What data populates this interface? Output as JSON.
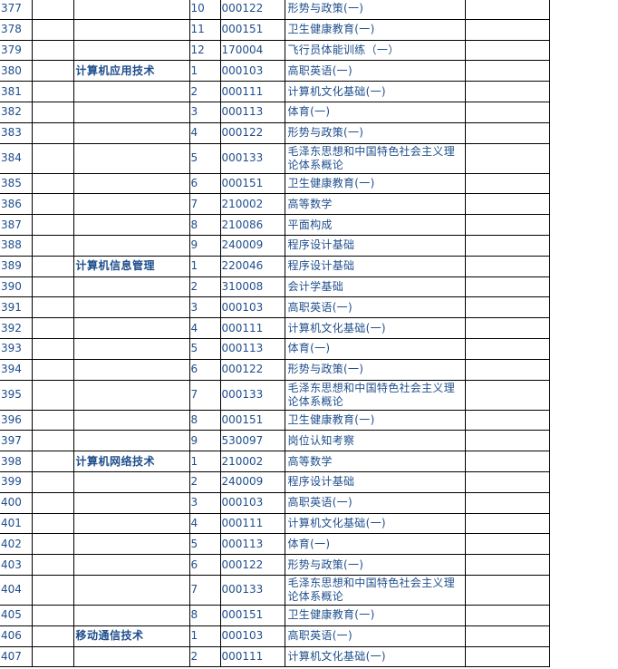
{
  "text_color": "#1f4e8c",
  "rows": [
    {
      "no": "377",
      "major": "",
      "seq": "10",
      "code": "000122",
      "course": "形势与政策(一)"
    },
    {
      "no": "378",
      "major": "",
      "seq": "11",
      "code": "000151",
      "course": "卫生健康教育(一)"
    },
    {
      "no": "379",
      "major": "",
      "seq": "12",
      "code": "170004",
      "course": "飞行员体能训练（一）"
    },
    {
      "no": "380",
      "major": "计算机应用技术",
      "seq": "1",
      "code": "000103",
      "course": "高职英语(一)"
    },
    {
      "no": "381",
      "major": "",
      "seq": "2",
      "code": "000111",
      "course": "计算机文化基础(一)"
    },
    {
      "no": "382",
      "major": "",
      "seq": "3",
      "code": "000113",
      "course": "体育(一)"
    },
    {
      "no": "383",
      "major": "",
      "seq": "4",
      "code": "000122",
      "course": "形势与政策(一)"
    },
    {
      "no": "384",
      "major": "",
      "seq": "5",
      "code": "000133",
      "course": "毛泽东思想和中国特色社会主义理论体系概论"
    },
    {
      "no": "385",
      "major": "",
      "seq": "6",
      "code": "000151",
      "course": "卫生健康教育(一)"
    },
    {
      "no": "386",
      "major": "",
      "seq": "7",
      "code": "210002",
      "course": "高等数学"
    },
    {
      "no": "387",
      "major": "",
      "seq": "8",
      "code": "210086",
      "course": "平面构成"
    },
    {
      "no": "388",
      "major": "",
      "seq": "9",
      "code": "240009",
      "course": "程序设计基础"
    },
    {
      "no": "389",
      "major": "计算机信息管理",
      "seq": "1",
      "code": "220046",
      "course": "程序设计基础"
    },
    {
      "no": "390",
      "major": "",
      "seq": "2",
      "code": "310008",
      "course": "会计学基础"
    },
    {
      "no": "391",
      "major": "",
      "seq": "3",
      "code": "000103",
      "course": "高职英语(一)"
    },
    {
      "no": "392",
      "major": "",
      "seq": "4",
      "code": "000111",
      "course": "计算机文化基础(一)"
    },
    {
      "no": "393",
      "major": "",
      "seq": "5",
      "code": "000113",
      "course": "体育(一)"
    },
    {
      "no": "394",
      "major": "",
      "seq": "6",
      "code": "000122",
      "course": "形势与政策(一)"
    },
    {
      "no": "395",
      "major": "",
      "seq": "7",
      "code": "000133",
      "course": "毛泽东思想和中国特色社会主义理论体系概论"
    },
    {
      "no": "396",
      "major": "",
      "seq": "8",
      "code": "000151",
      "course": "卫生健康教育(一)"
    },
    {
      "no": "397",
      "major": "",
      "seq": "9",
      "code": "530097",
      "course": "岗位认知考察"
    },
    {
      "no": "398",
      "major": "计算机网络技术",
      "seq": "1",
      "code": "210002",
      "course": "高等数学"
    },
    {
      "no": "399",
      "major": "",
      "seq": "2",
      "code": "240009",
      "course": "程序设计基础"
    },
    {
      "no": "400",
      "major": "",
      "seq": "3",
      "code": "000103",
      "course": "高职英语(一)"
    },
    {
      "no": "401",
      "major": "",
      "seq": "4",
      "code": "000111",
      "course": "计算机文化基础(一)"
    },
    {
      "no": "402",
      "major": "",
      "seq": "5",
      "code": "000113",
      "course": "体育(一)"
    },
    {
      "no": "403",
      "major": "",
      "seq": "6",
      "code": "000122",
      "course": "形势与政策(一)"
    },
    {
      "no": "404",
      "major": "",
      "seq": "7",
      "code": "000133",
      "course": "毛泽东思想和中国特色社会主义理论体系概论"
    },
    {
      "no": "405",
      "major": "",
      "seq": "8",
      "code": "000151",
      "course": "卫生健康教育(一)"
    },
    {
      "no": "406",
      "major": "移动通信技术",
      "seq": "1",
      "code": "000103",
      "course": "高职英语(一)"
    },
    {
      "no": "407",
      "major": "",
      "seq": "2",
      "code": "000111",
      "course": "计算机文化基础(一)"
    }
  ]
}
